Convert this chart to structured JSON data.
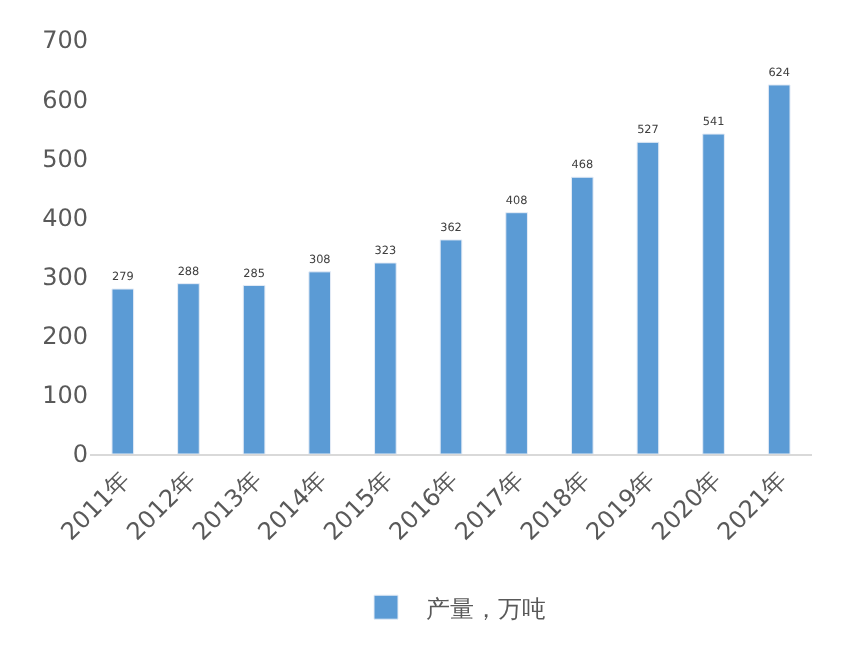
{
  "chart_data": {
    "type": "bar",
    "categories": [
      "2011年",
      "2012年",
      "2013年",
      "2014年",
      "2015年",
      "2016年",
      "2017年",
      "2018年",
      "2019年",
      "2020年",
      "2021年"
    ],
    "series": [
      {
        "name": "产量，万吨",
        "color": "#5b9bd5",
        "values": [
          279,
          288,
          285,
          308,
          323,
          362,
          408,
          468,
          527,
          541,
          624
        ]
      }
    ],
    "ylim": [
      0,
      700
    ],
    "yticks": [
      0,
      100,
      200,
      300,
      400,
      500,
      600,
      700
    ],
    "data_labels": true,
    "legend": "bottom",
    "grid": false
  }
}
